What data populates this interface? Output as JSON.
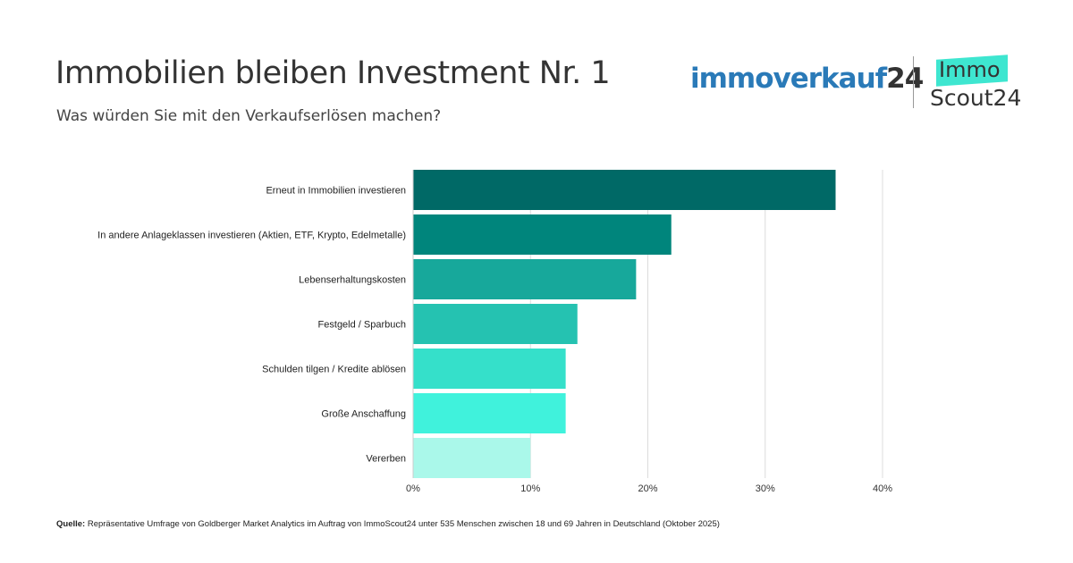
{
  "header": {
    "title": "Immobilien bleiben Investment Nr. 1",
    "subtitle": "Was würden Sie mit den Verkaufserlösen machen?"
  },
  "logos": {
    "immoverkauf_text": "immoverkauf",
    "immoverkauf_num": "24",
    "immoscout_top": "Immo",
    "immoscout_bottom": "Scout24"
  },
  "chart_data": {
    "type": "bar",
    "orientation": "horizontal",
    "categories": [
      "Erneut in Immobilien investieren",
      "In andere Anlageklassen investieren (Aktien, ETF, Krypto, Edelmetalle)",
      "Lebenserhaltungskosten",
      "Festgeld / Sparbuch",
      "Schulden tilgen / Kredite ablösen",
      "Große Anschaffung",
      "Vererben"
    ],
    "values": [
      36,
      22,
      19,
      14,
      13,
      13,
      10
    ],
    "colors": [
      "#006966",
      "#00857c",
      "#17a89b",
      "#25c2b1",
      "#35e0ca",
      "#40f2dc",
      "#aaf8ea"
    ],
    "xlim": [
      0,
      40
    ],
    "xticks": [
      0,
      10,
      20,
      30,
      40
    ],
    "xtick_labels": [
      "0%",
      "10%",
      "20%",
      "30%",
      "40%"
    ],
    "grid": true
  },
  "footer": {
    "source_label": "Quelle:",
    "source_text": " Repräsentative Umfrage von Goldberger Market Analytics im Auftrag von ImmoScout24 unter 535 Menschen zwischen 18 und 69 Jahren in Deutschland (Oktober 2025)"
  }
}
